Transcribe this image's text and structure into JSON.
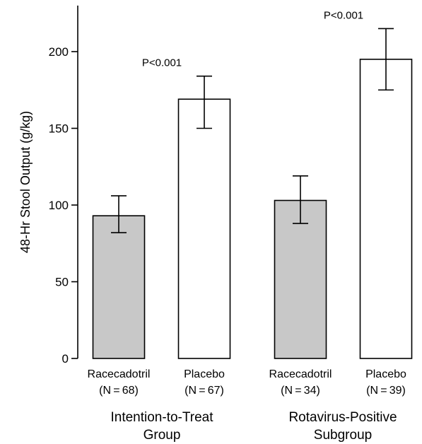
{
  "chart_data": {
    "type": "bar",
    "title": "",
    "ylabel": "48-Hr Stool Output (g/kg)",
    "ylim": [
      0,
      230
    ],
    "yticks": [
      0,
      50,
      100,
      150,
      200
    ],
    "grid": false,
    "legend": "none",
    "colors": {
      "racecadotril": "#c8c8c8",
      "placebo": "#ffffff",
      "stroke": "#000000"
    },
    "groups": [
      {
        "label_lines": [
          "Intention-to-Treat",
          "Group"
        ],
        "pvalue": "P<0.001",
        "bars": [
          {
            "name": "Racecadotril",
            "n_label": "(N = 68)",
            "value": 93,
            "err_low": 82,
            "err_high": 106,
            "fill": "racecadotril"
          },
          {
            "name": "Placebo",
            "n_label": "(N = 67)",
            "value": 169,
            "err_low": 150,
            "err_high": 184,
            "fill": "placebo"
          }
        ]
      },
      {
        "label_lines": [
          "Rotavirus-Positive",
          "Subgroup"
        ],
        "pvalue": "P<0.001",
        "bars": [
          {
            "name": "Racecadotril",
            "n_label": "(N = 34)",
            "value": 103,
            "err_low": 88,
            "err_high": 119,
            "fill": "racecadotril"
          },
          {
            "name": "Placebo",
            "n_label": "(N = 39)",
            "value": 195,
            "err_low": 175,
            "err_high": 215,
            "fill": "placebo"
          }
        ]
      }
    ]
  }
}
